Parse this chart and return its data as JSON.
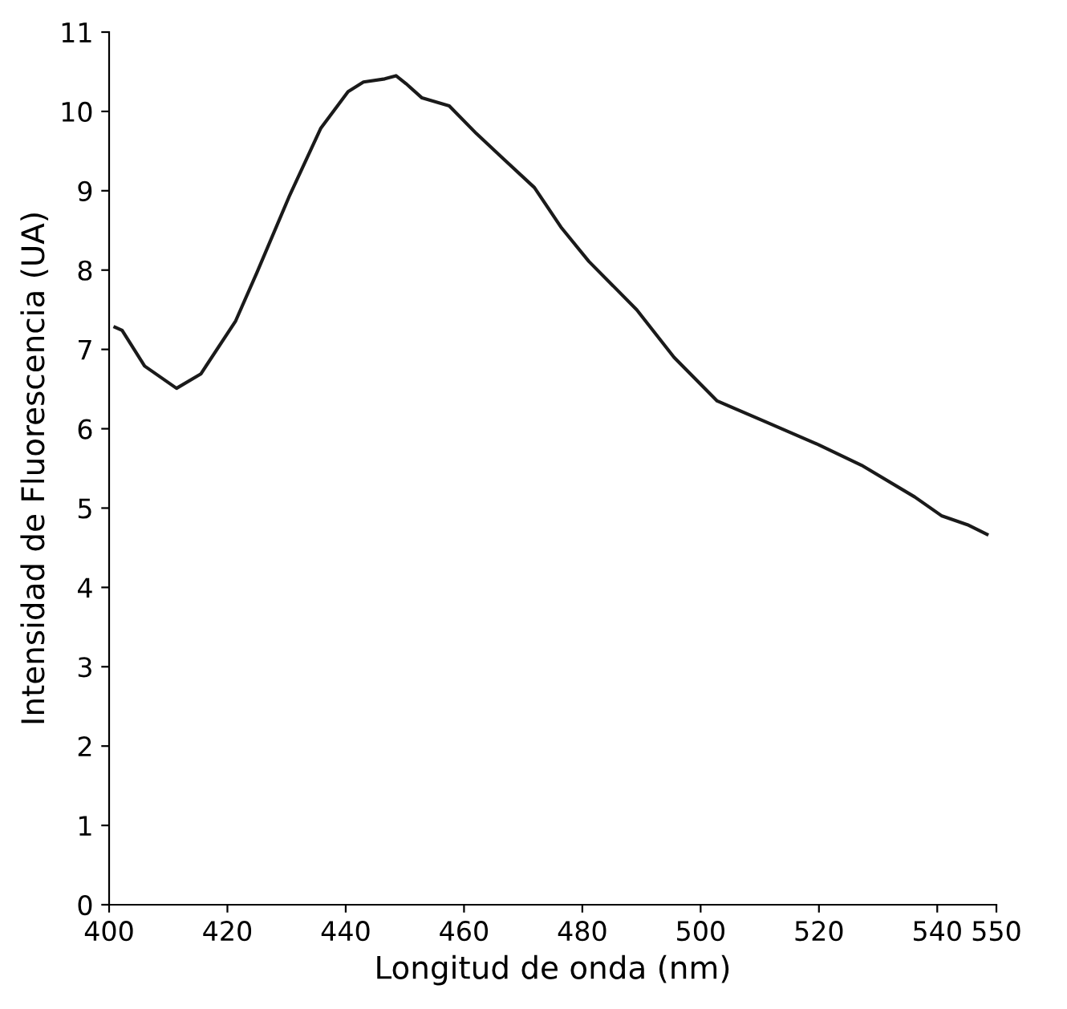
{
  "chart_data": {
    "type": "line",
    "xlabel": "Longitud de onda (nm)",
    "ylabel": "Intensidad de Fluorescencia (UA)",
    "series": [
      {
        "color": "#1a1a1a",
        "x": [
          401,
          402.2,
          406,
          411.4,
          415.5,
          421.4,
          425,
          430.4,
          435.8,
          440.4,
          443,
          446.6,
          448.5,
          450.2,
          452.9,
          457.5,
          462.1,
          466.4,
          471.9,
          476.5,
          481.1,
          489.2,
          495.5,
          502.8,
          510.9,
          519.9,
          527.2,
          536.2,
          540.8,
          545.1,
          548.4
        ],
        "values": [
          7.28,
          7.24,
          6.79,
          6.51,
          6.69,
          7.36,
          7.97,
          8.92,
          9.79,
          10.25,
          10.37,
          10.41,
          10.45,
          10.35,
          10.17,
          10.07,
          9.72,
          9.42,
          9.04,
          8.53,
          8.11,
          7.5,
          6.9,
          6.35,
          6.09,
          5.8,
          5.54,
          5.14,
          4.9,
          4.79,
          4.67
        ]
      }
    ],
    "xlim": [
      400,
      550
    ],
    "xticks": [
      400,
      420,
      440,
      460,
      480,
      500,
      520,
      540,
      550
    ],
    "ylim": [
      0,
      11
    ],
    "yticks": [
      0,
      1,
      2,
      3,
      4,
      5,
      6,
      7,
      8,
      9,
      10,
      11
    ],
    "grid": false,
    "legend": false,
    "marker": "none",
    "line_style": "solid"
  }
}
